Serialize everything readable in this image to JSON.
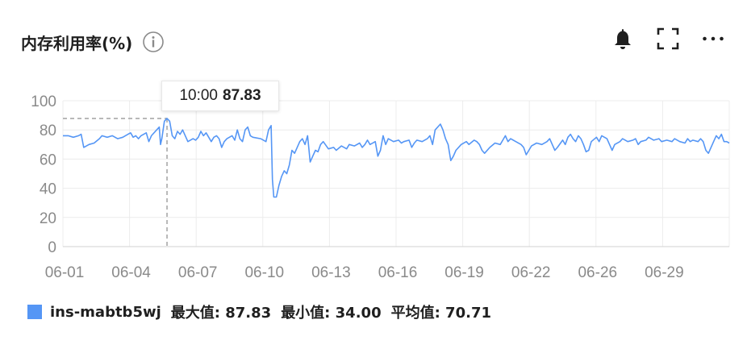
{
  "header": {
    "title": "内存利用率(%)"
  },
  "colors": {
    "series": "#5596f5",
    "grid": "#ececec",
    "axis_text": "#8a8a8a",
    "crosshair": "#b8b8b8"
  },
  "icons": {
    "info": "info-icon",
    "alarm": "bell-icon",
    "fullscreen": "fullscreen-icon",
    "more": "more-icon"
  },
  "tooltip": {
    "time": "10:00",
    "value": "87.83"
  },
  "legend": {
    "name": "ins-mabtb5wj",
    "max": "最大值: 87.83",
    "min": "最小值: 34.00",
    "avg": "平均值: 70.71"
  },
  "chart_data": {
    "type": "line",
    "title": "内存利用率(%)",
    "x_ticks": [
      "06-01",
      "06-04",
      "06-07",
      "06-10",
      "06-13",
      "06-16",
      "06-19",
      "06-22",
      "06-26",
      "06-29"
    ],
    "y_ticks": [
      0,
      20,
      40,
      60,
      80,
      100
    ],
    "ylim": [
      0,
      100
    ],
    "grid": true,
    "legend_position": "bottom-left",
    "series": [
      {
        "name": "ins-mabtb5wj",
        "points": [
          [
            0.0,
            76
          ],
          [
            0.2,
            76
          ],
          [
            0.4,
            75
          ],
          [
            0.6,
            76
          ],
          [
            0.7,
            77
          ],
          [
            0.8,
            68
          ],
          [
            1.0,
            70
          ],
          [
            1.2,
            71
          ],
          [
            1.4,
            74
          ],
          [
            1.5,
            76
          ],
          [
            1.7,
            75
          ],
          [
            1.9,
            76
          ],
          [
            2.1,
            74
          ],
          [
            2.3,
            75
          ],
          [
            2.5,
            77
          ],
          [
            2.6,
            78
          ],
          [
            2.7,
            75
          ],
          [
            2.8,
            76
          ],
          [
            2.9,
            74
          ],
          [
            3.0,
            76
          ],
          [
            3.2,
            78
          ],
          [
            3.3,
            72
          ],
          [
            3.4,
            76
          ],
          [
            3.6,
            80
          ],
          [
            3.7,
            82
          ],
          [
            3.75,
            70
          ],
          [
            3.8,
            74
          ],
          [
            3.9,
            86
          ],
          [
            4.0,
            87.83
          ],
          [
            4.1,
            86
          ],
          [
            4.2,
            76
          ],
          [
            4.3,
            74
          ],
          [
            4.4,
            79
          ],
          [
            4.5,
            77
          ],
          [
            4.6,
            80
          ],
          [
            4.8,
            72
          ],
          [
            5.0,
            74
          ],
          [
            5.1,
            73
          ],
          [
            5.2,
            75
          ],
          [
            5.3,
            79
          ],
          [
            5.4,
            76
          ],
          [
            5.5,
            78
          ],
          [
            5.7,
            72
          ],
          [
            5.8,
            75
          ],
          [
            5.9,
            76
          ],
          [
            6.0,
            74
          ],
          [
            6.1,
            68
          ],
          [
            6.2,
            72
          ],
          [
            6.3,
            74
          ],
          [
            6.5,
            76
          ],
          [
            6.6,
            73
          ],
          [
            6.7,
            80
          ],
          [
            6.8,
            74
          ],
          [
            6.9,
            72
          ],
          [
            7.0,
            80
          ],
          [
            7.1,
            82
          ],
          [
            7.2,
            76
          ],
          [
            7.3,
            75
          ],
          [
            7.6,
            74
          ],
          [
            7.8,
            72
          ],
          [
            7.9,
            80
          ],
          [
            8.0,
            83
          ],
          [
            8.05,
            46
          ],
          [
            8.1,
            34.0
          ],
          [
            8.2,
            34
          ],
          [
            8.3,
            42
          ],
          [
            8.4,
            48
          ],
          [
            8.5,
            52
          ],
          [
            8.6,
            50
          ],
          [
            8.7,
            56
          ],
          [
            8.8,
            66
          ],
          [
            8.9,
            64
          ],
          [
            9.0,
            68
          ],
          [
            9.1,
            72
          ],
          [
            9.2,
            74
          ],
          [
            9.3,
            70
          ],
          [
            9.4,
            76
          ],
          [
            9.5,
            58
          ],
          [
            9.6,
            62
          ],
          [
            9.7,
            66
          ],
          [
            9.8,
            65
          ],
          [
            9.9,
            70
          ],
          [
            10.0,
            72
          ],
          [
            10.2,
            67
          ],
          [
            10.4,
            68
          ],
          [
            10.5,
            66
          ],
          [
            10.7,
            69
          ],
          [
            10.9,
            67
          ],
          [
            11.0,
            70
          ],
          [
            11.2,
            69
          ],
          [
            11.4,
            71
          ],
          [
            11.5,
            68
          ],
          [
            11.6,
            70
          ],
          [
            11.7,
            73
          ],
          [
            11.8,
            70
          ],
          [
            12.0,
            72
          ],
          [
            12.1,
            62
          ],
          [
            12.2,
            66
          ],
          [
            12.3,
            76
          ],
          [
            12.4,
            70
          ],
          [
            12.5,
            74
          ],
          [
            12.7,
            72
          ],
          [
            12.9,
            73
          ],
          [
            13.0,
            71
          ],
          [
            13.1,
            72
          ],
          [
            13.3,
            73
          ],
          [
            13.4,
            68
          ],
          [
            13.5,
            71
          ],
          [
            13.6,
            73
          ],
          [
            13.8,
            72
          ],
          [
            14.0,
            74
          ],
          [
            14.1,
            76
          ],
          [
            14.2,
            70
          ],
          [
            14.3,
            80
          ],
          [
            14.5,
            84
          ],
          [
            14.6,
            80
          ],
          [
            14.7,
            74
          ],
          [
            14.8,
            70
          ],
          [
            14.9,
            59
          ],
          [
            15.0,
            62
          ],
          [
            15.1,
            66
          ],
          [
            15.3,
            70
          ],
          [
            15.5,
            72
          ],
          [
            15.6,
            70
          ],
          [
            15.8,
            73
          ],
          [
            15.9,
            72
          ],
          [
            16.0,
            70
          ],
          [
            16.1,
            66
          ],
          [
            16.2,
            64
          ],
          [
            16.4,
            68
          ],
          [
            16.6,
            71
          ],
          [
            16.8,
            70
          ],
          [
            16.9,
            73
          ],
          [
            17.0,
            76
          ],
          [
            17.1,
            72
          ],
          [
            17.2,
            74
          ],
          [
            17.4,
            72
          ],
          [
            17.6,
            70
          ],
          [
            17.7,
            68
          ],
          [
            17.8,
            63
          ],
          [
            17.9,
            66
          ],
          [
            18.0,
            69
          ],
          [
            18.2,
            71
          ],
          [
            18.4,
            70
          ],
          [
            18.6,
            72
          ],
          [
            18.7,
            74
          ],
          [
            18.8,
            70
          ],
          [
            18.9,
            66
          ],
          [
            19.0,
            68
          ],
          [
            19.2,
            73
          ],
          [
            19.3,
            70
          ],
          [
            19.4,
            75
          ],
          [
            19.5,
            77
          ],
          [
            19.6,
            74
          ],
          [
            19.7,
            72
          ],
          [
            19.8,
            76
          ],
          [
            19.9,
            74
          ],
          [
            20.0,
            70
          ],
          [
            20.1,
            65
          ],
          [
            20.2,
            66
          ],
          [
            20.3,
            72
          ],
          [
            20.5,
            75
          ],
          [
            20.6,
            72
          ],
          [
            20.7,
            76
          ],
          [
            20.9,
            74
          ],
          [
            21.0,
            70
          ],
          [
            21.1,
            66
          ],
          [
            21.2,
            70
          ],
          [
            21.4,
            72
          ],
          [
            21.5,
            74
          ],
          [
            21.7,
            72
          ],
          [
            21.9,
            73
          ],
          [
            22.0,
            74
          ],
          [
            22.1,
            70
          ],
          [
            22.2,
            72
          ],
          [
            22.4,
            73
          ],
          [
            22.5,
            75
          ],
          [
            22.7,
            73
          ],
          [
            22.9,
            74
          ],
          [
            23.0,
            72
          ],
          [
            23.2,
            73
          ],
          [
            23.4,
            72
          ],
          [
            23.5,
            74
          ],
          [
            23.7,
            72
          ],
          [
            23.9,
            71
          ],
          [
            24.0,
            74
          ],
          [
            24.1,
            72
          ],
          [
            24.2,
            73
          ],
          [
            24.4,
            72
          ],
          [
            24.5,
            74
          ],
          [
            24.6,
            72
          ],
          [
            24.7,
            66
          ],
          [
            24.8,
            64
          ],
          [
            24.9,
            68
          ],
          [
            25.0,
            72
          ],
          [
            25.1,
            76
          ],
          [
            25.2,
            74
          ],
          [
            25.3,
            77
          ],
          [
            25.4,
            72
          ],
          [
            25.5,
            72
          ],
          [
            25.6,
            71
          ]
        ]
      }
    ],
    "x_range": [
      0,
      25.6
    ]
  }
}
